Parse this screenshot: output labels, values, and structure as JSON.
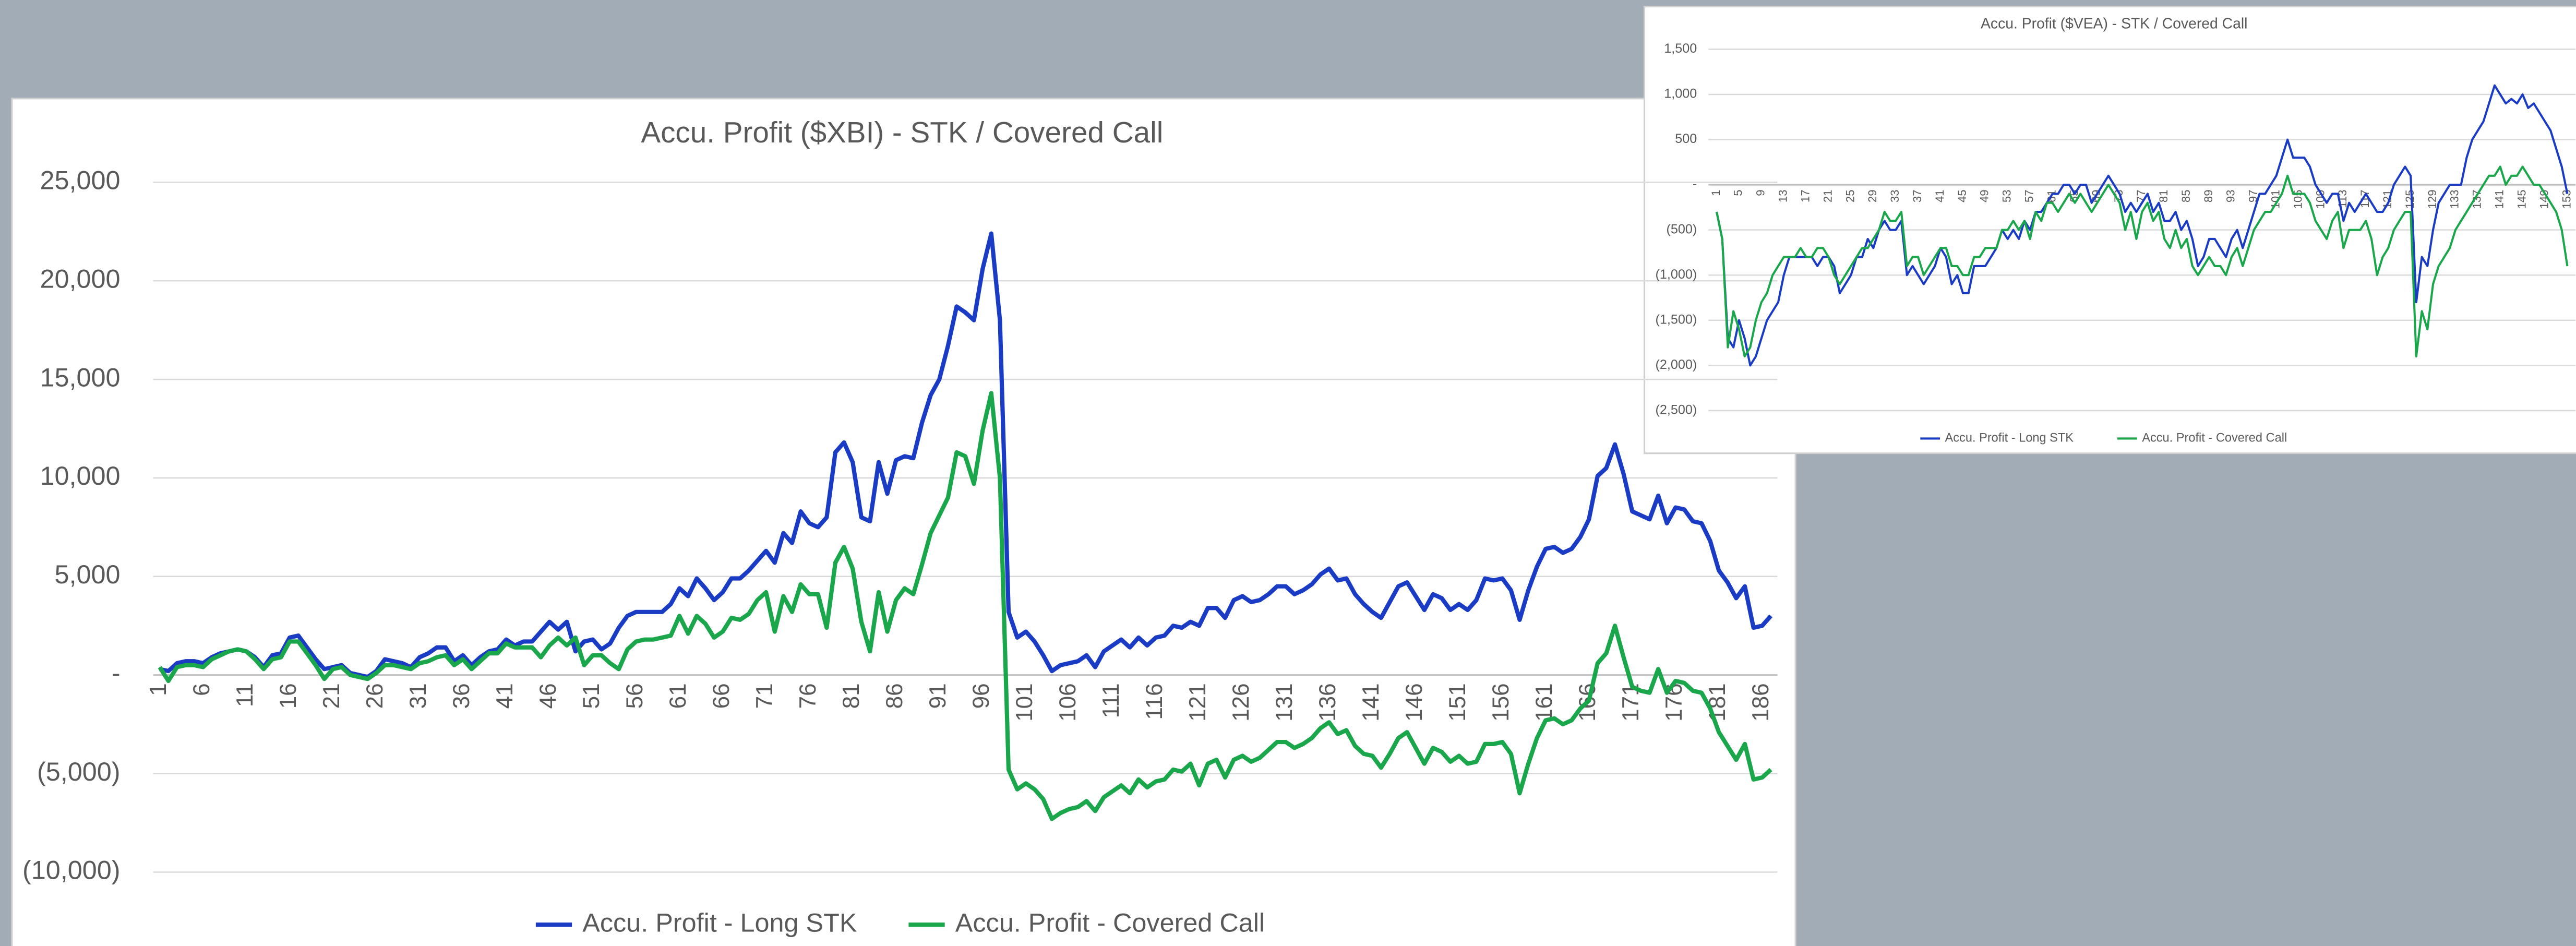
{
  "chart_data": [
    {
      "type": "line",
      "title": "Accu. Profit ($XBI) - STK / Covered Call",
      "categories": [
        1,
        null,
        null,
        null,
        null,
        6,
        null,
        null,
        null,
        null,
        11,
        null,
        null,
        null,
        null,
        16,
        null,
        null,
        null,
        null,
        21,
        null,
        null,
        null,
        null,
        26,
        null,
        null,
        null,
        null,
        31,
        null,
        null,
        null,
        null,
        36,
        null,
        null,
        null,
        null,
        41,
        null,
        null,
        null,
        null,
        46,
        null,
        null,
        null,
        null,
        51,
        null,
        null,
        null,
        null,
        56,
        null,
        null,
        null,
        null,
        61,
        null,
        null,
        null,
        null,
        66,
        null,
        null,
        null,
        null,
        71,
        null,
        null,
        null,
        null,
        76,
        null,
        null,
        null,
        null,
        81,
        null,
        null,
        null,
        null,
        86,
        null,
        null,
        null,
        null,
        91,
        null,
        null,
        null,
        null,
        96,
        null,
        null,
        null,
        null,
        101,
        null,
        null,
        null,
        null,
        106,
        null,
        null,
        null,
        null,
        111,
        null,
        null,
        null,
        null,
        116,
        null,
        null,
        null,
        null,
        121,
        null,
        null,
        null,
        null,
        126,
        null,
        null,
        null,
        null,
        131,
        null,
        null,
        null,
        null,
        136,
        null,
        null,
        null,
        null,
        141,
        null,
        null,
        null,
        null,
        146,
        null,
        null,
        null,
        null,
        151,
        null,
        null,
        null,
        null,
        156,
        null,
        null,
        null,
        null,
        161,
        null,
        null,
        null,
        null,
        166,
        null,
        null,
        null,
        null,
        171,
        null,
        null,
        null,
        null,
        176,
        null,
        null,
        null,
        null,
        181,
        null,
        null,
        null,
        null,
        186,
        null
      ],
      "series": [
        {
          "name": "Accu. Profit - Long STK",
          "color": "#1a3bc4",
          "values": [
            300,
            200,
            600,
            700,
            700,
            600,
            900,
            1100,
            1200,
            1300,
            1200,
            900,
            400,
            1000,
            1100,
            1900,
            2000,
            1400,
            800,
            300,
            400,
            500,
            100,
            0,
            -100,
            200,
            800,
            700,
            600,
            400,
            900,
            1100,
            1400,
            1400,
            700,
            1000,
            500,
            900,
            1200,
            1300,
            1800,
            1500,
            1700,
            1700,
            2200,
            2700,
            2300,
            2700,
            1200,
            1700,
            1800,
            1300,
            1600,
            2400,
            3000,
            3200,
            3200,
            3200,
            3200,
            3600,
            4400,
            4000,
            4900,
            4400,
            3800,
            4200,
            4900,
            4900,
            5300,
            5800,
            6300,
            5700,
            7200,
            6700,
            8300,
            7700,
            7500,
            8000,
            11300,
            11800,
            10800,
            8000,
            7800,
            10800,
            9200,
            10900,
            11100,
            11000,
            12800,
            14200,
            15000,
            16700,
            18700,
            18400,
            18000,
            20600,
            22400,
            18000,
            3200,
            1900,
            2200,
            1700,
            1000,
            200,
            500,
            600,
            700,
            1000,
            400,
            1200,
            1500,
            1800,
            1400,
            1900,
            1500,
            1900,
            2000,
            2500,
            2400,
            2700,
            2500,
            3400,
            3400,
            2900,
            3800,
            4000,
            3700,
            3800,
            4100,
            4500,
            4500,
            4100,
            4300,
            4600,
            5100,
            5400,
            4800,
            4900,
            4100,
            3600,
            3200,
            2900,
            3700,
            4500,
            4700,
            4000,
            3300,
            4100,
            3900,
            3300,
            3600,
            3300,
            3800,
            4900,
            4800,
            4900,
            4300,
            2800,
            4300,
            5500,
            6400,
            6500,
            6200,
            6400,
            7000,
            7900,
            10100,
            10500,
            11700,
            10200,
            8300,
            8100,
            7900,
            9100,
            7700,
            8500,
            8400,
            7800,
            7700,
            6800,
            5300,
            4700,
            3900,
            4500,
            2400,
            2500,
            3000
          ]
        },
        {
          "name": "Accu. Profit - Covered Call",
          "color": "#1aa64a",
          "values": [
            400,
            -300,
            400,
            500,
            500,
            400,
            800,
            1000,
            1200,
            1300,
            1200,
            800,
            300,
            800,
            900,
            1700,
            1700,
            1100,
            500,
            -200,
            300,
            400,
            0,
            -100,
            -200,
            100,
            500,
            500,
            400,
            300,
            600,
            700,
            900,
            1000,
            500,
            800,
            300,
            700,
            1100,
            1100,
            1600,
            1400,
            1400,
            1400,
            900,
            1500,
            1900,
            1500,
            1900,
            500,
            1000,
            1000,
            600,
            300,
            1300,
            1700,
            1800,
            1800,
            1900,
            2000,
            3000,
            2100,
            3000,
            2600,
            1900,
            2200,
            2900,
            2800,
            3100,
            3800,
            4200,
            2200,
            4000,
            3200,
            4600,
            4100,
            4100,
            2400,
            5700,
            6500,
            5400,
            2700,
            1200,
            4200,
            2200,
            3800,
            4400,
            4100,
            5600,
            7200,
            8100,
            9000,
            11300,
            11100,
            9700,
            12400,
            14300,
            10000,
            -4800,
            -5800,
            -5500,
            -5800,
            -6300,
            -7300,
            -7000,
            -6800,
            -6700,
            -6400,
            -6900,
            -6200,
            -5900,
            -5600,
            -6000,
            -5300,
            -5700,
            -5400,
            -5300,
            -4800,
            -4900,
            -4500,
            -5600,
            -4500,
            -4300,
            -5200,
            -4300,
            -4100,
            -4400,
            -4200,
            -3800,
            -3400,
            -3400,
            -3700,
            -3500,
            -3200,
            -2700,
            -2400,
            -3000,
            -2800,
            -3600,
            -4000,
            -4100,
            -4700,
            -4000,
            -3200,
            -2900,
            -3700,
            -4500,
            -3700,
            -3900,
            -4400,
            -4100,
            -4500,
            -4400,
            -3500,
            -3500,
            -3400,
            -4000,
            -6000,
            -4500,
            -3200,
            -2300,
            -2200,
            -2500,
            -2300,
            -1700,
            -1300,
            600,
            1100,
            2500,
            900,
            -600,
            -800,
            -900,
            300,
            -900,
            -300,
            -400,
            -800,
            -900,
            -1700,
            -2900,
            -3600,
            -4300,
            -3500,
            -5300,
            -5200,
            -4800
          ]
        }
      ],
      "ylim": [
        -10000,
        25000
      ],
      "yticks": [
        {
          "value": -10000,
          "label": "(10,000)"
        },
        {
          "value": -5000,
          "label": "(5,000)"
        },
        {
          "value": 0,
          "label": "-"
        },
        {
          "value": 5000,
          "label": "5,000"
        },
        {
          "value": 10000,
          "label": "10,000"
        },
        {
          "value": 15000,
          "label": "15,000"
        },
        {
          "value": 20000,
          "label": "20,000"
        },
        {
          "value": 25000,
          "label": "25,000"
        }
      ],
      "grid": true,
      "legend": "bottom"
    },
    {
      "type": "line",
      "title": "Accu. Profit ($VEA) - STK / Covered Call",
      "categories": [
        1,
        null,
        null,
        null,
        5,
        null,
        null,
        null,
        9,
        null,
        null,
        null,
        13,
        null,
        null,
        null,
        17,
        null,
        null,
        null,
        21,
        null,
        null,
        null,
        25,
        null,
        null,
        null,
        29,
        null,
        null,
        null,
        33,
        null,
        null,
        null,
        37,
        null,
        null,
        null,
        41,
        null,
        null,
        null,
        45,
        null,
        null,
        null,
        49,
        null,
        null,
        null,
        53,
        null,
        null,
        null,
        57,
        null,
        null,
        null,
        61,
        null,
        null,
        null,
        65,
        null,
        null,
        null,
        69,
        null,
        null,
        null,
        73,
        null,
        null,
        null,
        77,
        null,
        null,
        null,
        81,
        null,
        null,
        null,
        85,
        null,
        null,
        null,
        89,
        null,
        null,
        null,
        93,
        null,
        null,
        null,
        97,
        null,
        null,
        null,
        101,
        null,
        null,
        null,
        105,
        null,
        null,
        null,
        109,
        null,
        null,
        null,
        113,
        null,
        null,
        null,
        117,
        null,
        null,
        null,
        121,
        null,
        null,
        null,
        125,
        null,
        null,
        null,
        129,
        null,
        null,
        null,
        133,
        null,
        null,
        null,
        137,
        null,
        null,
        null,
        141,
        null,
        null,
        null,
        145,
        null,
        null,
        null,
        149,
        null,
        null,
        null,
        153
      ],
      "series": [
        {
          "name": "Accu. Profit - Long STK",
          "color": "#1a3bc4",
          "values": [
            -300,
            -600,
            -1700,
            -1800,
            -1500,
            -1700,
            -2000,
            -1900,
            -1700,
            -1500,
            -1400,
            -1300,
            -1000,
            -800,
            -800,
            -800,
            -800,
            -800,
            -900,
            -800,
            -800,
            -900,
            -1200,
            -1100,
            -1000,
            -800,
            -800,
            -600,
            -700,
            -500,
            -400,
            -500,
            -500,
            -400,
            -1000,
            -900,
            -1000,
            -1100,
            -1000,
            -900,
            -700,
            -800,
            -1100,
            -1000,
            -1200,
            -1200,
            -900,
            -900,
            -900,
            -800,
            -700,
            -500,
            -600,
            -500,
            -600,
            -400,
            -500,
            -300,
            -300,
            -200,
            -100,
            -100,
            0,
            0,
            -100,
            0,
            0,
            -200,
            -100,
            0,
            100,
            0,
            -100,
            -300,
            -200,
            -300,
            -200,
            -100,
            -300,
            -200,
            -400,
            -400,
            -300,
            -500,
            -400,
            -600,
            -900,
            -800,
            -600,
            -600,
            -700,
            -800,
            -600,
            -500,
            -700,
            -500,
            -300,
            -100,
            -100,
            0,
            100,
            300,
            500,
            300,
            300,
            300,
            200,
            0,
            -100,
            -200,
            -100,
            -100,
            -400,
            -200,
            -300,
            -200,
            -100,
            -200,
            -300,
            -300,
            -200,
            0,
            100,
            200,
            100,
            -1300,
            -800,
            -900,
            -500,
            -200,
            -100,
            0,
            0,
            0,
            300,
            500,
            600,
            700,
            900,
            1100,
            1000,
            900,
            950,
            900,
            1000,
            850,
            900,
            800,
            700,
            600,
            400,
            200,
            -100
          ]
        },
        {
          "name": "Accu. Profit - Covered Call",
          "color": "#1aa64a",
          "values": [
            -300,
            -600,
            -1800,
            -1400,
            -1600,
            -1900,
            -1800,
            -1500,
            -1300,
            -1200,
            -1000,
            -900,
            -800,
            -800,
            -800,
            -700,
            -800,
            -800,
            -700,
            -700,
            -800,
            -1000,
            -1100,
            -1000,
            -900,
            -800,
            -700,
            -700,
            -600,
            -500,
            -300,
            -400,
            -400,
            -300,
            -900,
            -800,
            -800,
            -1000,
            -900,
            -800,
            -700,
            -700,
            -900,
            -900,
            -1000,
            -1000,
            -800,
            -800,
            -700,
            -700,
            -700,
            -500,
            -500,
            -400,
            -500,
            -400,
            -600,
            -300,
            -400,
            -200,
            -200,
            -300,
            -200,
            -100,
            -200,
            -100,
            -200,
            -300,
            -200,
            -100,
            0,
            -100,
            -200,
            -500,
            -300,
            -600,
            -300,
            -200,
            -400,
            -300,
            -600,
            -700,
            -500,
            -700,
            -600,
            -900,
            -1000,
            -900,
            -800,
            -900,
            -900,
            -1000,
            -800,
            -700,
            -900,
            -700,
            -500,
            -400,
            -300,
            -300,
            -200,
            -100,
            100,
            -100,
            -100,
            -100,
            -200,
            -400,
            -500,
            -600,
            -400,
            -300,
            -700,
            -500,
            -500,
            -500,
            -400,
            -600,
            -1000,
            -800,
            -700,
            -500,
            -400,
            -300,
            -300,
            -1900,
            -1400,
            -1600,
            -1100,
            -900,
            -800,
            -700,
            -500,
            -400,
            -300,
            -200,
            -100,
            0,
            100,
            100,
            200,
            0,
            100,
            100,
            200,
            100,
            0,
            0,
            -100,
            -200,
            -300,
            -500,
            -900
          ]
        }
      ],
      "ylim": [
        -2500,
        1500
      ],
      "yticks": [
        {
          "value": -2500,
          "label": "(2,500)"
        },
        {
          "value": -2000,
          "label": "(2,000)"
        },
        {
          "value": -1500,
          "label": "(1,500)"
        },
        {
          "value": -1000,
          "label": "(1,000)"
        },
        {
          "value": -500,
          "label": "(500)"
        },
        {
          "value": 0,
          "label": "-"
        },
        {
          "value": 500,
          "label": "500"
        },
        {
          "value": 1000,
          "label": "1,000"
        },
        {
          "value": 1500,
          "label": "1,500"
        }
      ],
      "grid": true,
      "legend": "bottom"
    }
  ]
}
